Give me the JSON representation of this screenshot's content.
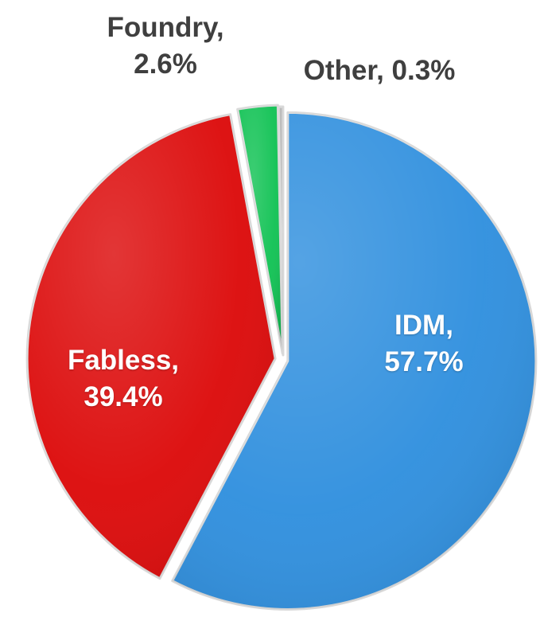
{
  "chart_data": {
    "type": "pie",
    "title": "",
    "series": [
      {
        "values": [
          57.7,
          39.4,
          2.6,
          0.3
        ],
        "categories": [
          "IDM",
          "Fabless",
          "Foundry",
          "Other"
        ]
      }
    ],
    "slices": [
      {
        "name": "IDM",
        "value": 57.7,
        "name_text": "IDM,",
        "value_text": "57.7%",
        "color": "#2f8fde"
      },
      {
        "name": "Fabless",
        "value": 39.4,
        "name_text": "Fabless,",
        "value_text": "39.4%",
        "color": "#dc0a0a"
      },
      {
        "name": "Foundry",
        "value": 2.6,
        "name_text": "Foundry,",
        "value_text": "2.6%",
        "color": "#11c254"
      },
      {
        "name": "Other",
        "value": 0.3,
        "name_text": "Other, 0.3%",
        "value_text": "",
        "color": "#b5b5b5"
      }
    ],
    "start_angle_deg": 0,
    "direction": "clockwise",
    "exploded": true,
    "legend": "none"
  }
}
